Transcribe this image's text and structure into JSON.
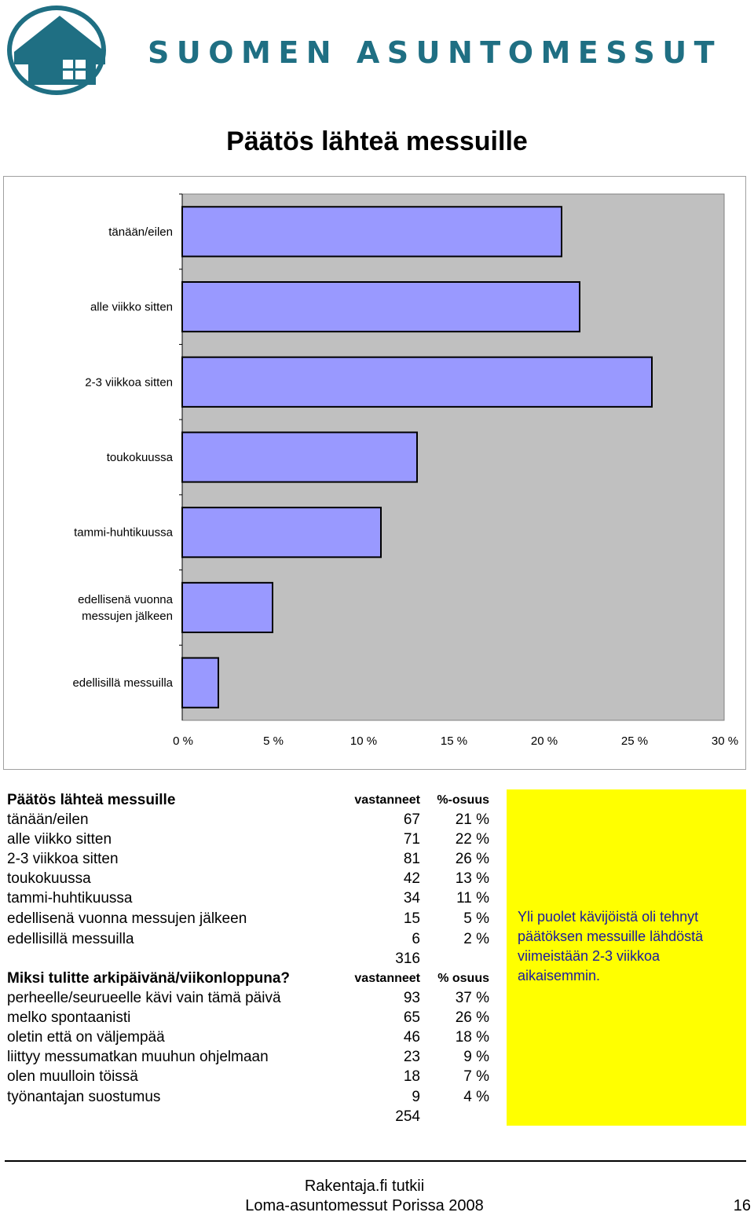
{
  "header": {
    "brand": "SUOMEN ASUNTOMESSUT",
    "logo_icon": "house-logo-icon",
    "colors": {
      "brand": "#1f6f83"
    }
  },
  "page_title": "Päätös lähteä messuille",
  "chart_data": {
    "type": "bar",
    "orientation": "horizontal",
    "categories": [
      "tänään/eilen",
      "alle viikko sitten",
      "2-3 viikkoa sitten",
      "toukokuussa",
      "tammi-huhtikuussa",
      "edellisenä vuonna messujen jälkeen",
      "edellisillä messuilla"
    ],
    "values": [
      21,
      22,
      26,
      13,
      11,
      5,
      2
    ],
    "xlim": [
      0,
      30
    ],
    "xticks": [
      "0 %",
      "5 %",
      "10 %",
      "15 %",
      "20 %",
      "25 %",
      "30 %"
    ],
    "unit": "%",
    "colors": {
      "bar": "#9999ff",
      "plot_bg": "#c0c0c0"
    },
    "grid": false,
    "legend": false
  },
  "table1": {
    "title": "Päätös lähteä messuille",
    "col_count": "vastanneet",
    "col_pct": "%-osuus",
    "rows": [
      {
        "label": "tänään/eilen",
        "count": "67",
        "pct": "21 %"
      },
      {
        "label": "alle viikko sitten",
        "count": "71",
        "pct": "22 %"
      },
      {
        "label": "2-3 viikkoa sitten",
        "count": "81",
        "pct": "26 %"
      },
      {
        "label": "toukokuussa",
        "count": "42",
        "pct": "13 %"
      },
      {
        "label": "tammi-huhtikuussa",
        "count": "34",
        "pct": "11 %"
      },
      {
        "label": "edellisenä vuonna messujen jälkeen",
        "count": "15",
        "pct": "5 %"
      },
      {
        "label": "edellisillä messuilla",
        "count": "6",
        "pct": "2 %"
      }
    ],
    "total": "316"
  },
  "table2": {
    "title": "Miksi tulitte arkipäivänä/viikonloppuna?",
    "col_count": "vastanneet",
    "col_pct": "% osuus",
    "rows": [
      {
        "label": "perheelle/seurueelle kävi vain tämä päivä",
        "count": "93",
        "pct": "37 %"
      },
      {
        "label": "melko spontaanisti",
        "count": "65",
        "pct": "26 %"
      },
      {
        "label": "oletin että on väljempää",
        "count": "46",
        "pct": "18 %"
      },
      {
        "label": "liittyy messumatkan muuhun ohjelmaan",
        "count": "23",
        "pct": "9 %"
      },
      {
        "label": "olen muulloin töissä",
        "count": "18",
        "pct": "7 %"
      },
      {
        "label": "työnantajan suostumus",
        "count": "9",
        "pct": "4 %"
      }
    ],
    "total": "254"
  },
  "note": {
    "text": "Yli puolet kävijöistä oli tehnyt päätöksen messuille lähdöstä viimeistään 2-3 viikkoa aikaisemmin.",
    "colors": {
      "background": "#ffff00",
      "text": "#1a1aa0"
    }
  },
  "footer": {
    "line1": "Rakentaja.fi tutkii",
    "line2": "Loma-asuntomessut Porissa 2008",
    "page_number": "16"
  }
}
